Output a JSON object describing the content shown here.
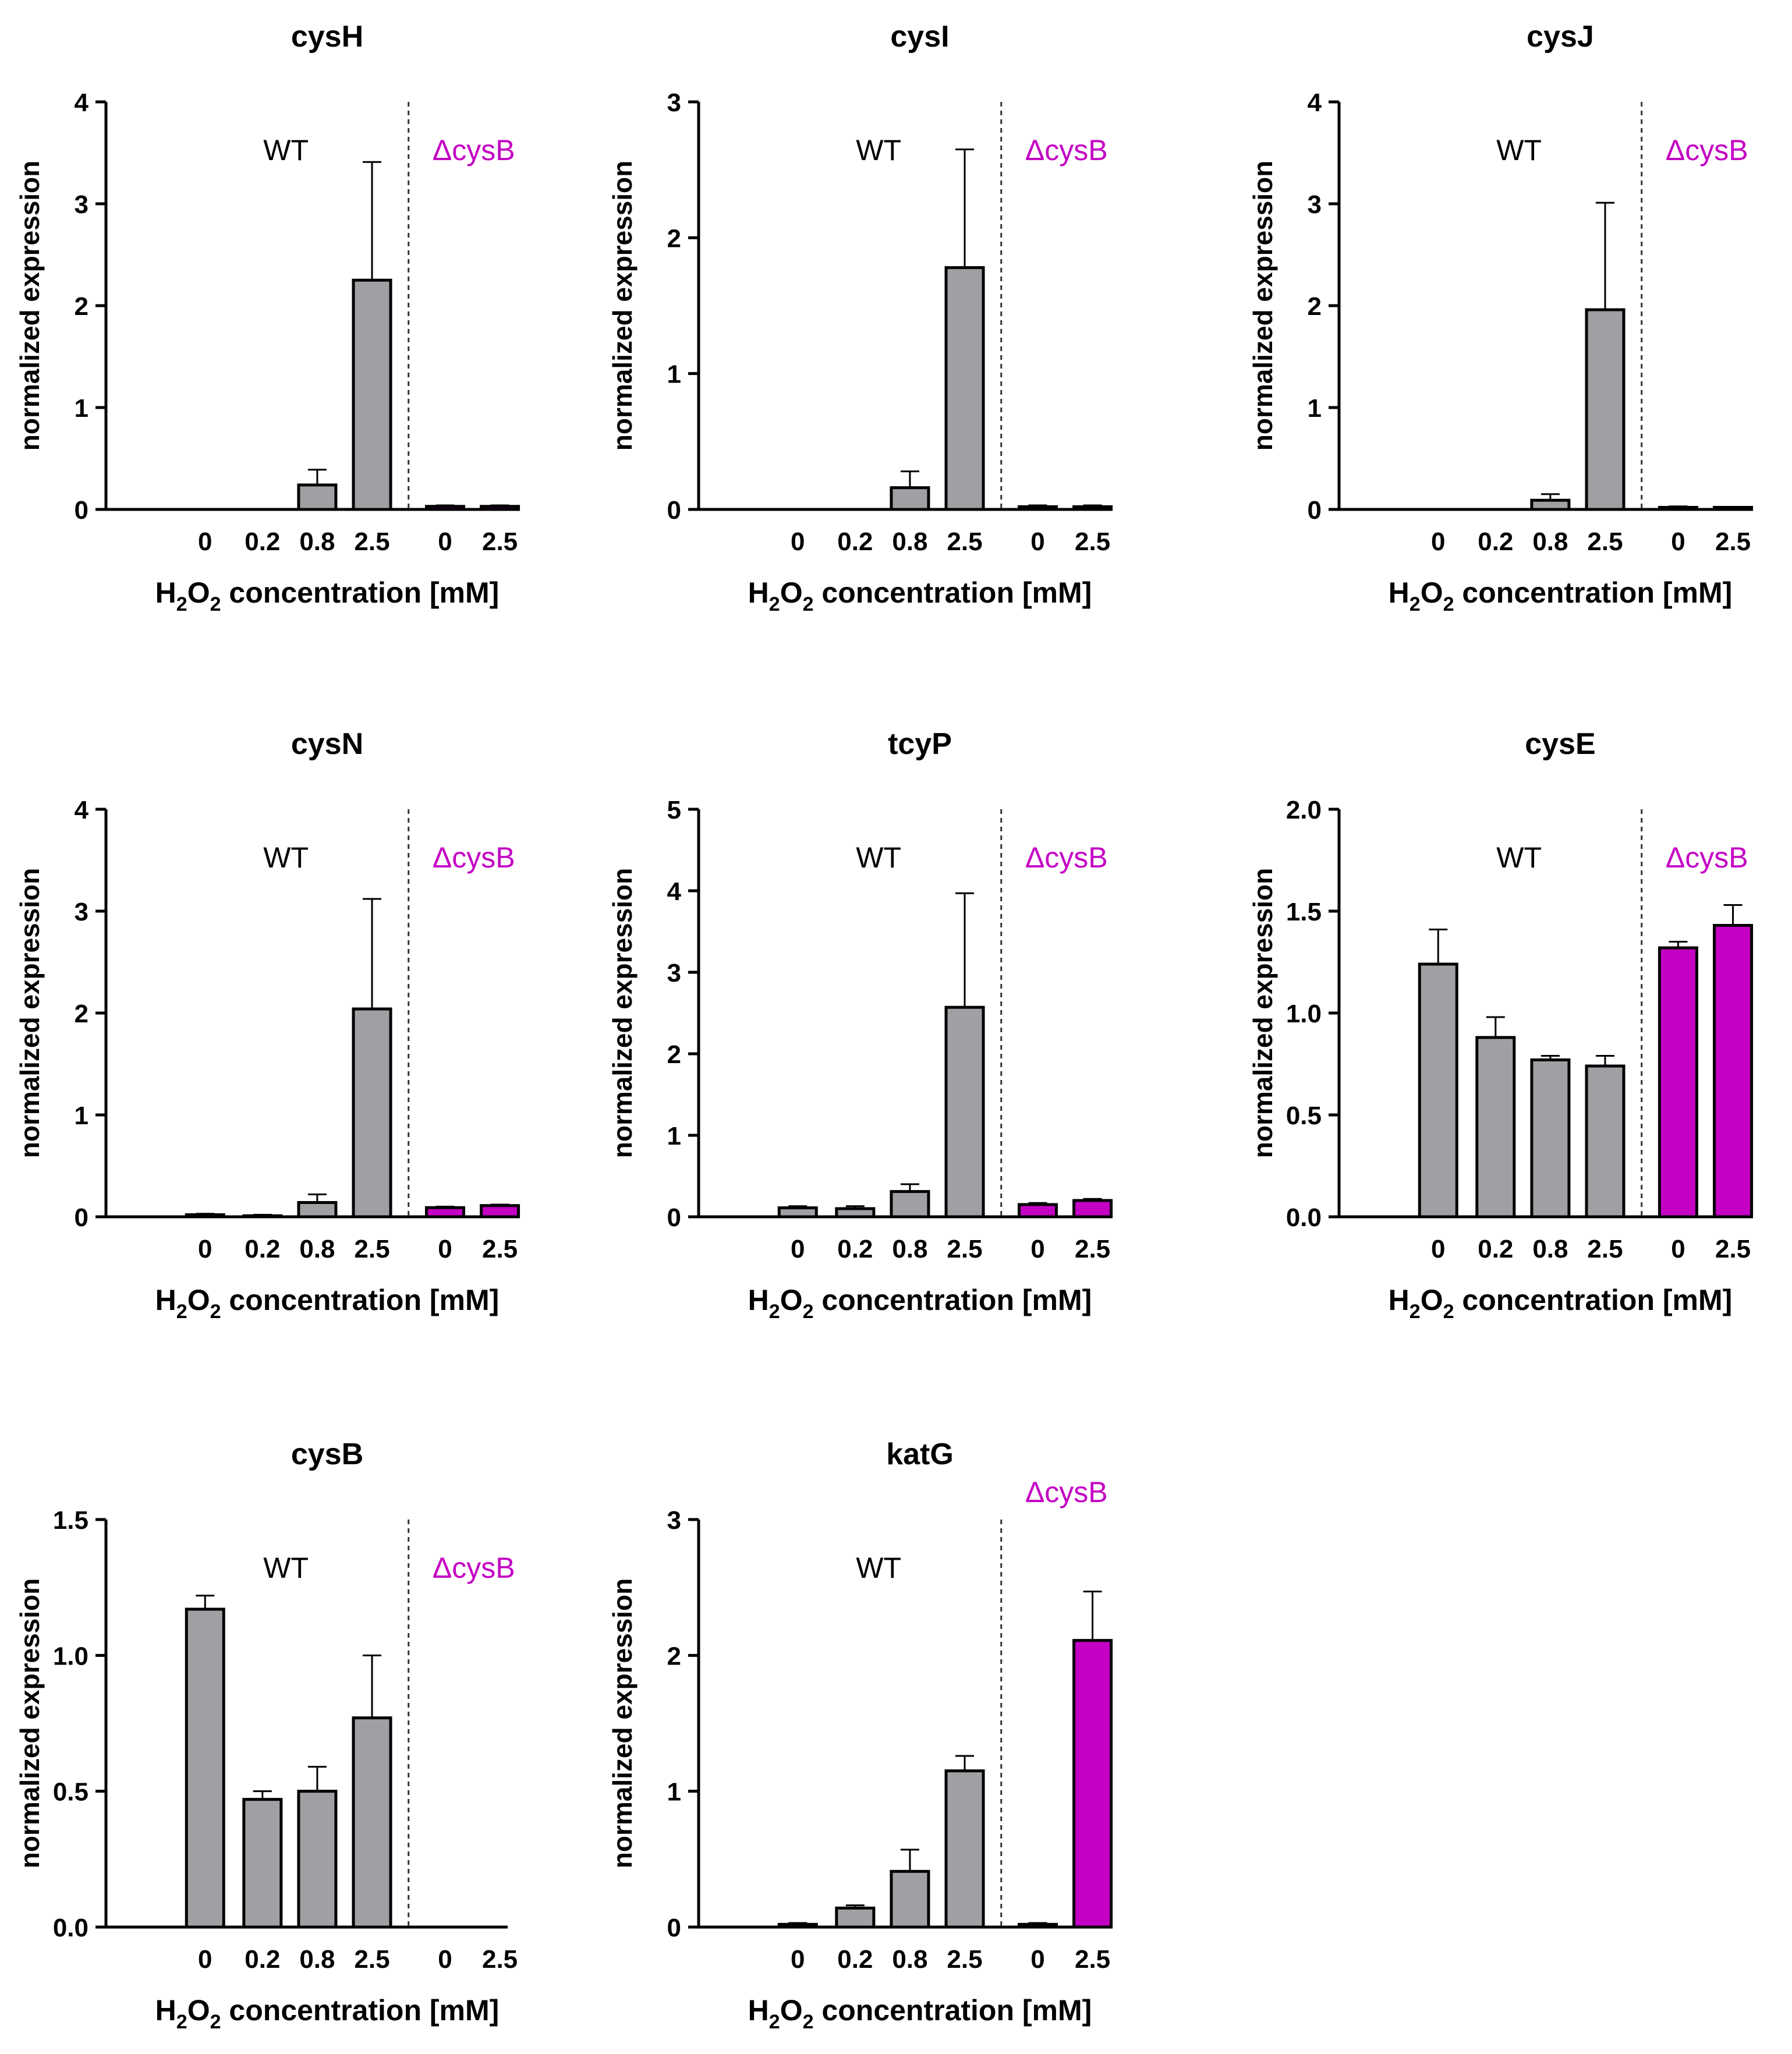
{
  "figure": {
    "colors": {
      "wt_bar": "#A0A0A4",
      "mutant_bar": "#C400C4",
      "mutant_label": "#C400C4",
      "axis": "#000000"
    }
  },
  "chart_data": [
    {
      "type": "bar",
      "title": "cysH",
      "ylabel": "normalized expression",
      "xlabel_parts": [
        "H",
        "2",
        "O",
        "2",
        " concentration [mM]"
      ],
      "ylim": [
        0,
        4
      ],
      "yticks": [
        "0",
        "1",
        "2",
        "3",
        "4"
      ],
      "categories": [
        "0",
        "0.2",
        "0.8",
        "2.5",
        "0",
        "2.5"
      ],
      "groups": [
        "WT",
        "WT",
        "WT",
        "WT",
        "ΔcysB",
        "ΔcysB"
      ],
      "values": [
        0.0,
        0.0,
        0.24,
        2.25,
        0.03,
        0.03
      ],
      "errors": [
        0,
        0,
        0.15,
        1.16,
        0.01,
        0.01
      ],
      "group_labels": [
        "WT",
        "ΔcysB"
      ],
      "mutant_label_pos": "inside"
    },
    {
      "type": "bar",
      "title": "cysI",
      "ylabel": "normalized expression",
      "xlabel_parts": [
        "H",
        "2",
        "O",
        "2",
        " concentration [mM]"
      ],
      "ylim": [
        0,
        3
      ],
      "yticks": [
        "0",
        "1",
        "2",
        "3"
      ],
      "categories": [
        "0",
        "0.2",
        "0.8",
        "2.5",
        "0",
        "2.5"
      ],
      "groups": [
        "WT",
        "WT",
        "WT",
        "WT",
        "ΔcysB",
        "ΔcysB"
      ],
      "values": [
        0.0,
        0.0,
        0.16,
        1.78,
        0.02,
        0.02
      ],
      "errors": [
        0,
        0,
        0.12,
        0.87,
        0.01,
        0.01
      ],
      "group_labels": [
        "WT",
        "ΔcysB"
      ],
      "mutant_label_pos": "inside"
    },
    {
      "type": "bar",
      "title": "cysJ",
      "ylabel": "normalized expression",
      "xlabel_parts": [
        "H",
        "2",
        "O",
        "2",
        " concentration [mM]"
      ],
      "ylim": [
        0,
        4
      ],
      "yticks": [
        "0",
        "1",
        "2",
        "3",
        "4"
      ],
      "categories": [
        "0",
        "0.2",
        "0.8",
        "2.5",
        "0",
        "2.5"
      ],
      "groups": [
        "WT",
        "WT",
        "WT",
        "WT",
        "ΔcysB",
        "ΔcysB"
      ],
      "values": [
        0.0,
        0.0,
        0.09,
        1.96,
        0.02,
        0.02
      ],
      "errors": [
        0,
        0,
        0.06,
        1.05,
        0.01,
        0.005
      ],
      "group_labels": [
        "WT",
        "ΔcysB"
      ],
      "mutant_label_pos": "inside"
    },
    {
      "type": "bar",
      "title": "cysN",
      "ylabel": "normalized expression",
      "xlabel_parts": [
        "H",
        "2",
        "O",
        "2",
        " concentration [mM]"
      ],
      "ylim": [
        0,
        4
      ],
      "yticks": [
        "0",
        "1",
        "2",
        "3",
        "4"
      ],
      "categories": [
        "0",
        "0.2",
        "0.8",
        "2.5",
        "0",
        "2.5"
      ],
      "groups": [
        "WT",
        "WT",
        "WT",
        "WT",
        "ΔcysB",
        "ΔcysB"
      ],
      "values": [
        0.02,
        0.01,
        0.14,
        2.04,
        0.09,
        0.11
      ],
      "errors": [
        0.01,
        0.01,
        0.08,
        1.08,
        0.01,
        0.01
      ],
      "group_labels": [
        "WT",
        "ΔcysB"
      ],
      "mutant_label_pos": "inside"
    },
    {
      "type": "bar",
      "title": "tcyP",
      "ylabel": "normalized expression",
      "xlabel_parts": [
        "H",
        "2",
        "O",
        "2",
        " concentration [mM]"
      ],
      "ylim": [
        0,
        5
      ],
      "yticks": [
        "0",
        "1",
        "2",
        "3",
        "4",
        "5"
      ],
      "categories": [
        "0",
        "0.2",
        "0.8",
        "2.5",
        "0",
        "2.5"
      ],
      "groups": [
        "WT",
        "WT",
        "WT",
        "WT",
        "ΔcysB",
        "ΔcysB"
      ],
      "values": [
        0.11,
        0.1,
        0.31,
        2.57,
        0.15,
        0.2
      ],
      "errors": [
        0.02,
        0.03,
        0.09,
        1.4,
        0.02,
        0.02
      ],
      "group_labels": [
        "WT",
        "ΔcysB"
      ],
      "mutant_label_pos": "inside"
    },
    {
      "type": "bar",
      "title": "cysE",
      "ylabel": "normalized expression",
      "xlabel_parts": [
        "H",
        "2",
        "O",
        "2",
        " concentration [mM]"
      ],
      "ylim": [
        0,
        2
      ],
      "yticks": [
        "0.0",
        "0.5",
        "1.0",
        "1.5",
        "2.0"
      ],
      "categories": [
        "0",
        "0.2",
        "0.8",
        "2.5",
        "0",
        "2.5"
      ],
      "groups": [
        "WT",
        "WT",
        "WT",
        "WT",
        "ΔcysB",
        "ΔcysB"
      ],
      "values": [
        1.24,
        0.88,
        0.77,
        0.74,
        1.32,
        1.43
      ],
      "errors": [
        0.17,
        0.1,
        0.02,
        0.05,
        0.03,
        0.1
      ],
      "group_labels": [
        "WT",
        "ΔcysB"
      ],
      "mutant_label_pos": "inside"
    },
    {
      "type": "bar",
      "title": "cysB",
      "ylabel": "normalized expression",
      "xlabel_parts": [
        "H",
        "2",
        "O",
        "2",
        " concentration [mM]"
      ],
      "ylim": [
        0,
        1.5
      ],
      "yticks": [
        "0.0",
        "0.5",
        "1.0",
        "1.5"
      ],
      "categories": [
        "0",
        "0.2",
        "0.8",
        "2.5",
        "0",
        "2.5"
      ],
      "groups": [
        "WT",
        "WT",
        "WT",
        "WT",
        "ΔcysB",
        "ΔcysB"
      ],
      "values": [
        1.17,
        0.47,
        0.5,
        0.77,
        0,
        0
      ],
      "errors": [
        0.05,
        0.03,
        0.09,
        0.23,
        0,
        0
      ],
      "group_labels": [
        "WT",
        "ΔcysB"
      ],
      "mutant_label_pos": "inside"
    },
    {
      "type": "bar",
      "title": "katG",
      "ylabel": "normalized expression",
      "xlabel_parts": [
        "H",
        "2",
        "O",
        "2",
        " concentration [mM]"
      ],
      "ylim": [
        0,
        3
      ],
      "yticks": [
        "0",
        "1",
        "2",
        "3"
      ],
      "categories": [
        "0",
        "0.2",
        "0.8",
        "2.5",
        "0",
        "2.5"
      ],
      "groups": [
        "WT",
        "WT",
        "WT",
        "WT",
        "ΔcysB",
        "ΔcysB"
      ],
      "values": [
        0.02,
        0.14,
        0.41,
        1.15,
        0.02,
        2.11
      ],
      "errors": [
        0.01,
        0.02,
        0.16,
        0.11,
        0.01,
        0.36
      ],
      "group_labels": [
        "WT",
        "ΔcysB"
      ],
      "mutant_label_pos": "above"
    }
  ]
}
